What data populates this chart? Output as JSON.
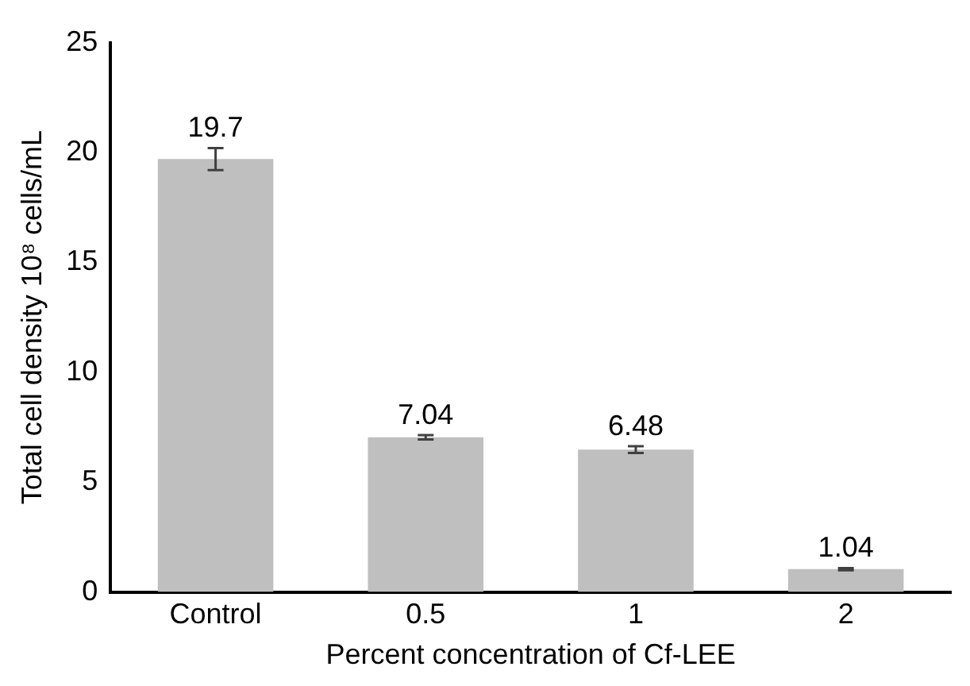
{
  "chart_data": {
    "type": "bar",
    "xlabel": "Percent concentration of Cf-LEE",
    "ylabel": "Total cell density 10⁸ cells/mL",
    "categories": [
      "Control",
      "0.5",
      "1",
      "2"
    ],
    "values": [
      19.7,
      7.04,
      6.48,
      1.04
    ],
    "errors": [
      0.5,
      0.1,
      0.15,
      0.05
    ],
    "color": "#bfbfbf",
    "ylim": [
      0,
      25
    ],
    "yticks": [
      0,
      5,
      10,
      15,
      20,
      25
    ],
    "grid": false,
    "legend": false,
    "data_labels": true
  }
}
